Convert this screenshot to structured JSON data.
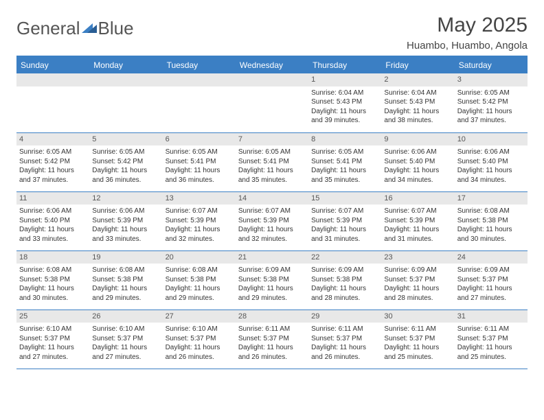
{
  "brand": {
    "word1": "General",
    "word2": "Blue"
  },
  "title": "May 2025",
  "subtitle": "Huambo, Huambo, Angola",
  "colors": {
    "accent": "#3b7fc4",
    "header_bg": "#3b7fc4",
    "daynum_bg": "#e8e8e8",
    "text": "#333333",
    "background": "#ffffff"
  },
  "fontsize": {
    "title": 30,
    "subtitle": 15,
    "dow": 12,
    "cell": 10
  },
  "dow": [
    "Sunday",
    "Monday",
    "Tuesday",
    "Wednesday",
    "Thursday",
    "Friday",
    "Saturday"
  ],
  "weeks": [
    [
      null,
      null,
      null,
      null,
      {
        "n": "1",
        "sr": "6:04 AM",
        "ss": "5:43 PM",
        "dl": "11 hours and 39 minutes."
      },
      {
        "n": "2",
        "sr": "6:04 AM",
        "ss": "5:43 PM",
        "dl": "11 hours and 38 minutes."
      },
      {
        "n": "3",
        "sr": "6:05 AM",
        "ss": "5:42 PM",
        "dl": "11 hours and 37 minutes."
      }
    ],
    [
      {
        "n": "4",
        "sr": "6:05 AM",
        "ss": "5:42 PM",
        "dl": "11 hours and 37 minutes."
      },
      {
        "n": "5",
        "sr": "6:05 AM",
        "ss": "5:42 PM",
        "dl": "11 hours and 36 minutes."
      },
      {
        "n": "6",
        "sr": "6:05 AM",
        "ss": "5:41 PM",
        "dl": "11 hours and 36 minutes."
      },
      {
        "n": "7",
        "sr": "6:05 AM",
        "ss": "5:41 PM",
        "dl": "11 hours and 35 minutes."
      },
      {
        "n": "8",
        "sr": "6:05 AM",
        "ss": "5:41 PM",
        "dl": "11 hours and 35 minutes."
      },
      {
        "n": "9",
        "sr": "6:06 AM",
        "ss": "5:40 PM",
        "dl": "11 hours and 34 minutes."
      },
      {
        "n": "10",
        "sr": "6:06 AM",
        "ss": "5:40 PM",
        "dl": "11 hours and 34 minutes."
      }
    ],
    [
      {
        "n": "11",
        "sr": "6:06 AM",
        "ss": "5:40 PM",
        "dl": "11 hours and 33 minutes."
      },
      {
        "n": "12",
        "sr": "6:06 AM",
        "ss": "5:39 PM",
        "dl": "11 hours and 33 minutes."
      },
      {
        "n": "13",
        "sr": "6:07 AM",
        "ss": "5:39 PM",
        "dl": "11 hours and 32 minutes."
      },
      {
        "n": "14",
        "sr": "6:07 AM",
        "ss": "5:39 PM",
        "dl": "11 hours and 32 minutes."
      },
      {
        "n": "15",
        "sr": "6:07 AM",
        "ss": "5:39 PM",
        "dl": "11 hours and 31 minutes."
      },
      {
        "n": "16",
        "sr": "6:07 AM",
        "ss": "5:39 PM",
        "dl": "11 hours and 31 minutes."
      },
      {
        "n": "17",
        "sr": "6:08 AM",
        "ss": "5:38 PM",
        "dl": "11 hours and 30 minutes."
      }
    ],
    [
      {
        "n": "18",
        "sr": "6:08 AM",
        "ss": "5:38 PM",
        "dl": "11 hours and 30 minutes."
      },
      {
        "n": "19",
        "sr": "6:08 AM",
        "ss": "5:38 PM",
        "dl": "11 hours and 29 minutes."
      },
      {
        "n": "20",
        "sr": "6:08 AM",
        "ss": "5:38 PM",
        "dl": "11 hours and 29 minutes."
      },
      {
        "n": "21",
        "sr": "6:09 AM",
        "ss": "5:38 PM",
        "dl": "11 hours and 29 minutes."
      },
      {
        "n": "22",
        "sr": "6:09 AM",
        "ss": "5:38 PM",
        "dl": "11 hours and 28 minutes."
      },
      {
        "n": "23",
        "sr": "6:09 AM",
        "ss": "5:37 PM",
        "dl": "11 hours and 28 minutes."
      },
      {
        "n": "24",
        "sr": "6:09 AM",
        "ss": "5:37 PM",
        "dl": "11 hours and 27 minutes."
      }
    ],
    [
      {
        "n": "25",
        "sr": "6:10 AM",
        "ss": "5:37 PM",
        "dl": "11 hours and 27 minutes."
      },
      {
        "n": "26",
        "sr": "6:10 AM",
        "ss": "5:37 PM",
        "dl": "11 hours and 27 minutes."
      },
      {
        "n": "27",
        "sr": "6:10 AM",
        "ss": "5:37 PM",
        "dl": "11 hours and 26 minutes."
      },
      {
        "n": "28",
        "sr": "6:11 AM",
        "ss": "5:37 PM",
        "dl": "11 hours and 26 minutes."
      },
      {
        "n": "29",
        "sr": "6:11 AM",
        "ss": "5:37 PM",
        "dl": "11 hours and 26 minutes."
      },
      {
        "n": "30",
        "sr": "6:11 AM",
        "ss": "5:37 PM",
        "dl": "11 hours and 25 minutes."
      },
      {
        "n": "31",
        "sr": "6:11 AM",
        "ss": "5:37 PM",
        "dl": "11 hours and 25 minutes."
      }
    ]
  ],
  "labels": {
    "sunrise": "Sunrise:",
    "sunset": "Sunset:",
    "daylight": "Daylight:"
  }
}
